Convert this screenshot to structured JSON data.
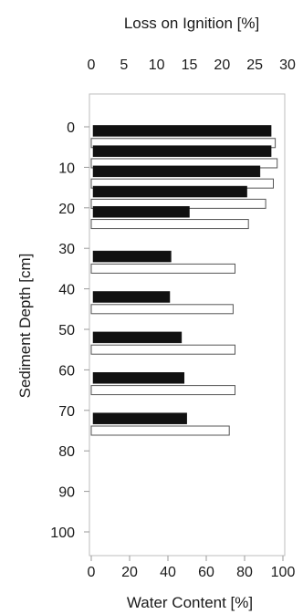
{
  "chart_data": {
    "type": "bar",
    "orientation": "horizontal",
    "ylabel": "Sediment Depth [cm]",
    "y_ticks": [
      0,
      10,
      20,
      30,
      40,
      50,
      60,
      70,
      80,
      90,
      100
    ],
    "ylim": [
      0,
      100
    ],
    "y_inverted": true,
    "top_axis": {
      "label": "Loss on Ignition [%]",
      "ticks": [
        0,
        5,
        10,
        15,
        20,
        25,
        30
      ],
      "xlim": [
        0,
        30
      ]
    },
    "bottom_axis": {
      "label": "Water Content [%]",
      "ticks": [
        0,
        20,
        40,
        60,
        80,
        100
      ],
      "xlim": [
        0,
        100
      ]
    },
    "series": [
      {
        "color": "#111111",
        "axis": "top",
        "depths": [
          1,
          6,
          11,
          16,
          21,
          32,
          42,
          52,
          62,
          72
        ],
        "values": [
          27.5,
          27.5,
          25.8,
          23.8,
          15,
          12.2,
          12,
          13.8,
          14.2,
          14.6
        ]
      },
      {
        "color": "#ffffff",
        "axis": "bottom",
        "depths": [
          4,
          9,
          14,
          19,
          24,
          35,
          45,
          55,
          65,
          75
        ],
        "values": [
          96,
          97,
          95,
          91,
          82,
          75,
          74,
          75,
          75,
          72
        ]
      }
    ],
    "grid": false
  }
}
